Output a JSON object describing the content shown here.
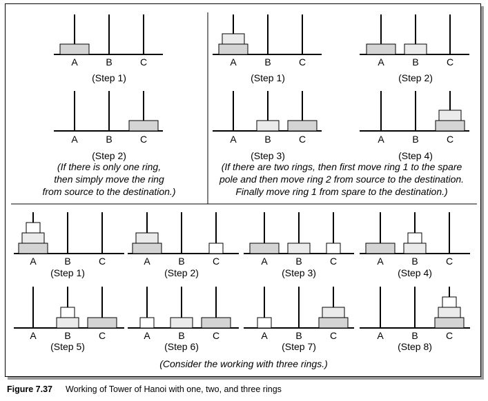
{
  "colors": {
    "ring_large": "#d4d4d4",
    "ring_medium": "#ebebeb",
    "ring_small": "#ffffff",
    "stroke": "#000000"
  },
  "pole_labels": [
    "A",
    "B",
    "C"
  ],
  "one_ring": {
    "steps": [
      {
        "label": "(Step 1)",
        "pegs": [
          [
            "L"
          ],
          [],
          []
        ]
      },
      {
        "label": "(Step 2)",
        "pegs": [
          [],
          [],
          [
            "L"
          ]
        ]
      }
    ],
    "note": [
      "(If there is only one ring,",
      "then simply move the ring",
      "from source to the destination.)"
    ]
  },
  "two_rings": {
    "steps": [
      {
        "label": "(Step 1)",
        "pegs": [
          [
            "L",
            "M"
          ],
          [],
          []
        ]
      },
      {
        "label": "(Step 2)",
        "pegs": [
          [
            "L"
          ],
          [
            "M"
          ],
          []
        ]
      },
      {
        "label": "(Step 3)",
        "pegs": [
          [],
          [
            "M"
          ],
          [
            "L"
          ]
        ]
      },
      {
        "label": "(Step 4)",
        "pegs": [
          [],
          [],
          [
            "L",
            "M"
          ]
        ]
      }
    ],
    "note": [
      "(If there are two rings, then first move ring 1 to the spare",
      "pole and then move ring 2 from source to the destination.",
      "Finally move ring 1 from spare to the destination.)"
    ]
  },
  "three_rings": {
    "steps": [
      {
        "label": "(Step 1)",
        "pegs": [
          [
            "L",
            "M",
            "S"
          ],
          [],
          []
        ]
      },
      {
        "label": "(Step 2)",
        "pegs": [
          [
            "L",
            "M"
          ],
          [],
          [
            "S"
          ]
        ]
      },
      {
        "label": "(Step 3)",
        "pegs": [
          [
            "L"
          ],
          [
            "M"
          ],
          [
            "S"
          ]
        ]
      },
      {
        "label": "(Step 4)",
        "pegs": [
          [
            "L"
          ],
          [
            "M",
            "S"
          ],
          []
        ]
      },
      {
        "label": "(Step 5)",
        "pegs": [
          [],
          [
            "M",
            "S"
          ],
          [
            "L"
          ]
        ]
      },
      {
        "label": "(Step 6)",
        "pegs": [
          [
            "S"
          ],
          [
            "M"
          ],
          [
            "L"
          ]
        ]
      },
      {
        "label": "(Step 7)",
        "pegs": [
          [
            "S"
          ],
          [],
          [
            "L",
            "M"
          ]
        ]
      },
      {
        "label": "(Step 8)",
        "pegs": [
          [],
          [],
          [
            "L",
            "M",
            "S"
          ]
        ]
      }
    ],
    "note": "(Consider the working with three rings.)"
  },
  "caption": {
    "label": "Figure 7.37",
    "text": "Working of Tower of Hanoi with one, two, and three rings"
  }
}
